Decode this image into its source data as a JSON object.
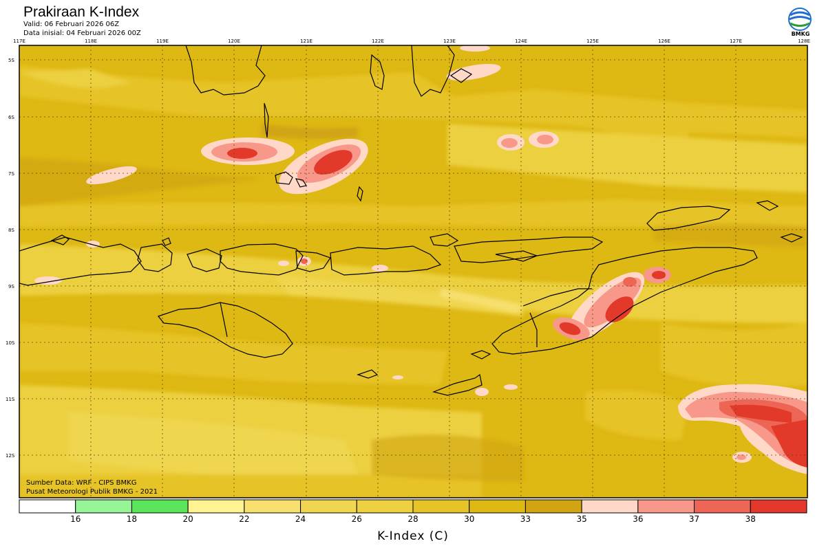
{
  "header": {
    "title": "Prakiraan K-Index",
    "valid": "Valid: 06 Februari 2026 06Z",
    "initial": "Data inisial: 04 Februari 2026 00Z"
  },
  "logo": {
    "text": "BMKG"
  },
  "map": {
    "lon_labels": [
      "117E",
      "118E",
      "119E",
      "120E",
      "121E",
      "122E",
      "123E",
      "124E",
      "125E",
      "126E",
      "127E",
      "128E"
    ],
    "lat_labels": [
      "5S",
      "6S",
      "7S",
      "8S",
      "9S",
      "10S",
      "11S",
      "12S"
    ]
  },
  "credits": {
    "source": "Sumber Data: WRF - CIPS BMKG",
    "center": "Pusat Meteorologi Publik BMKG - 2021"
  },
  "colorbar": {
    "title": "K-Index (C)",
    "ticks": [
      "16",
      "18",
      "20",
      "22",
      "24",
      "26",
      "28",
      "30",
      "33",
      "35",
      "36",
      "37",
      "38"
    ],
    "colors": [
      "#ffffff",
      "#96f396",
      "#5ae65a",
      "#fff291",
      "#f8e070",
      "#f0d650",
      "#ecd040",
      "#e6c326",
      "#deb813",
      "#d0a412",
      "#ffd8c8",
      "#f8988a",
      "#ec6555",
      "#e2392b"
    ]
  }
}
